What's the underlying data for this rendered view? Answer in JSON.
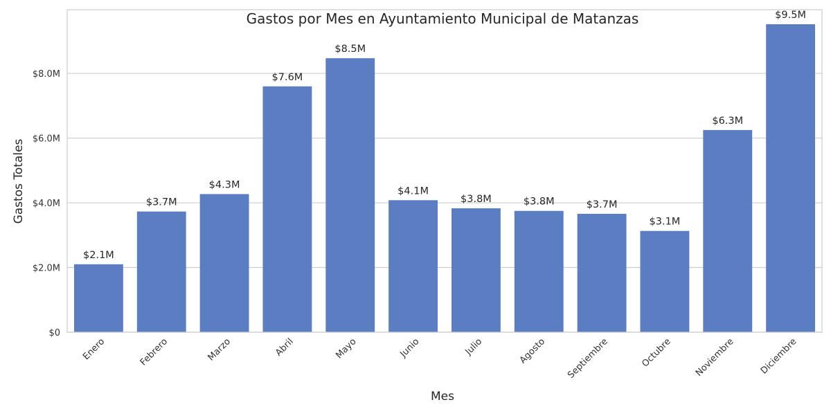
{
  "chart_data": {
    "type": "bar",
    "title": "Gastos por Mes en Ayuntamiento Municipal de Matanzas",
    "xlabel": "Mes",
    "ylabel": "Gastos Totales",
    "categories": [
      "Enero",
      "Febrero",
      "Marzo",
      "Abril",
      "Mayo",
      "Junio",
      "Julio",
      "Agosto",
      "Septiembre",
      "Octubre",
      "Noviembre",
      "Diciembre"
    ],
    "values": [
      2.1,
      3.73,
      4.27,
      7.6,
      8.47,
      4.08,
      3.83,
      3.75,
      3.66,
      3.13,
      6.25,
      9.52
    ],
    "data_labels": [
      "$2.1M",
      "$3.7M",
      "$4.3M",
      "$7.6M",
      "$8.5M",
      "$4.1M",
      "$3.8M",
      "$3.8M",
      "$3.7M",
      "$3.1M",
      "$6.3M",
      "$9.5M"
    ],
    "ylim": [
      0,
      9.97
    ],
    "yticks": [
      0,
      2,
      4,
      6,
      8
    ],
    "ytick_labels": [
      "$0",
      "$2.0M",
      "$4.0M",
      "$6.0M",
      "$8.0M"
    ],
    "grid": true,
    "colors": {
      "bar": "#5b7ec3",
      "grid": "#cccccc",
      "frame": "#cccccc"
    }
  }
}
